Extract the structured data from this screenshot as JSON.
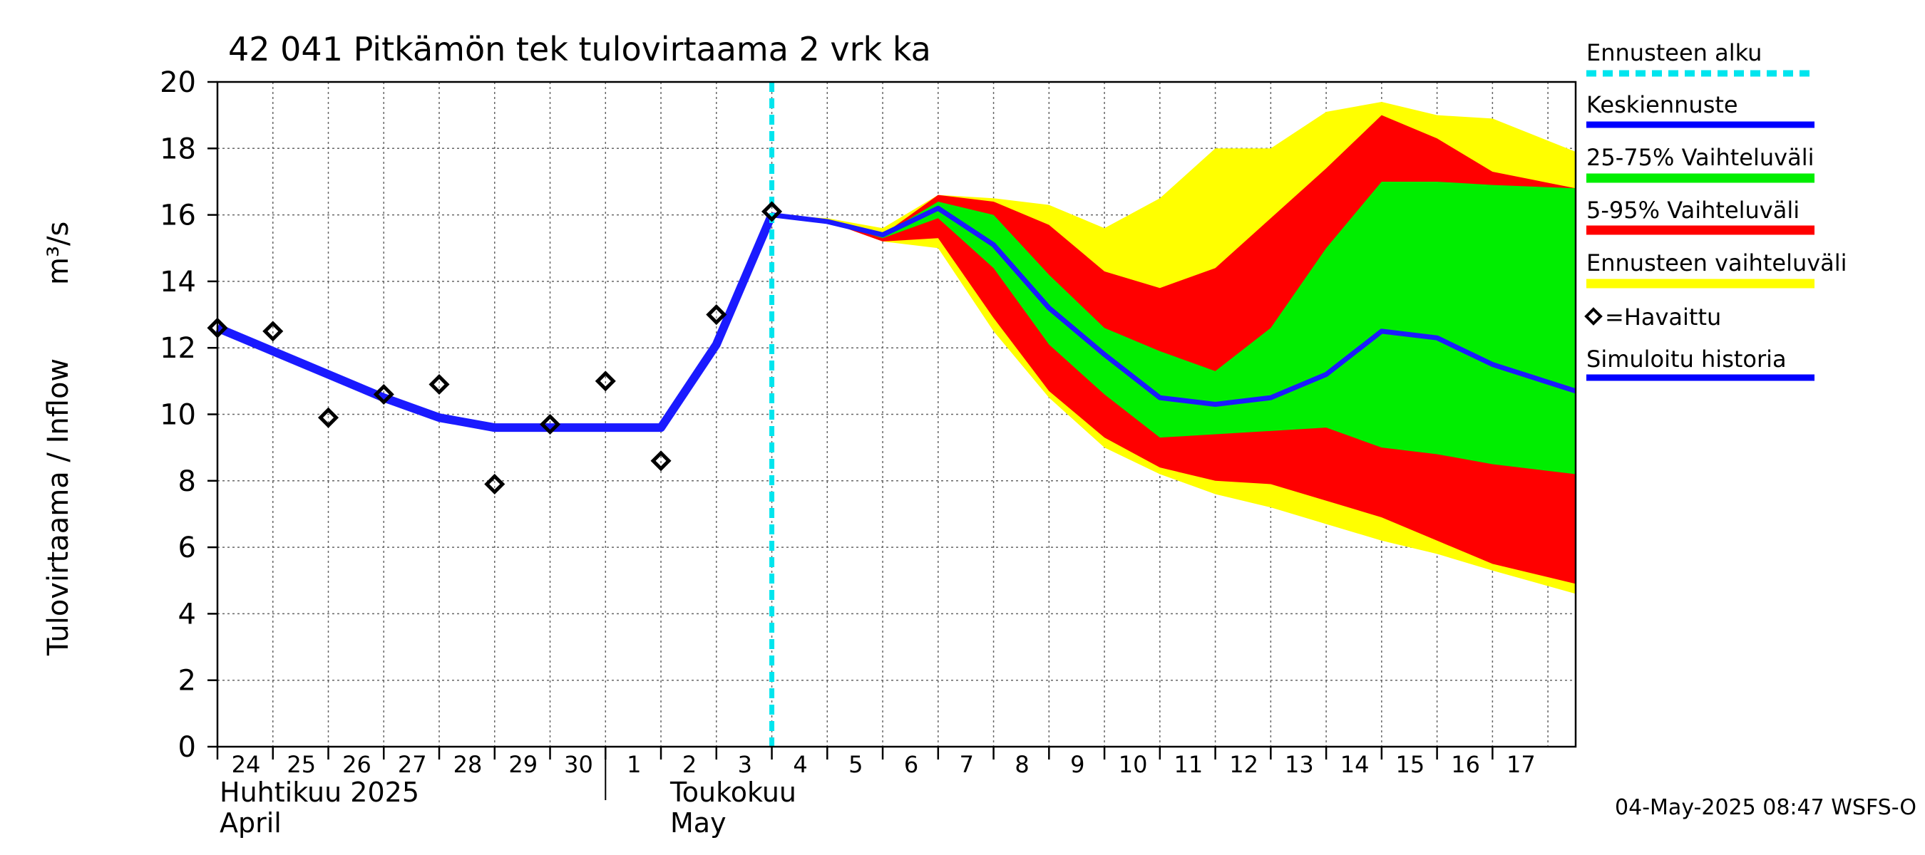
{
  "chart_data": {
    "type": "area",
    "title": "42 041 Pitkämön tek tulovirtaama 2 vrk ka",
    "ylabel": "Tulovirtaama / Inflow",
    "yunit": "m³/s",
    "ylim": [
      0,
      20
    ],
    "yticks": [
      "0",
      "2",
      "4",
      "6",
      "8",
      "10",
      "12",
      "14",
      "16",
      "18",
      "20"
    ],
    "xlim": [
      0,
      24.5
    ],
    "grid": true,
    "day_labels": [
      "24",
      "25",
      "26",
      "27",
      "28",
      "29",
      "30",
      "1",
      "2",
      "3",
      "4",
      "5",
      "6",
      "7",
      "8",
      "9",
      "10",
      "11",
      "12",
      "13",
      "14",
      "15",
      "16",
      "17"
    ],
    "month_labels": {
      "april_fi": "Huhtikuu  2025",
      "april_en": "April",
      "may_fi": "Toukokuu",
      "may_en": "May"
    },
    "forecast_start_x": 10,
    "observed": {
      "x": [
        0,
        1,
        2,
        3,
        4,
        5,
        6,
        7,
        8,
        9,
        10
      ],
      "y": [
        12.6,
        12.5,
        9.9,
        10.6,
        10.9,
        7.9,
        9.7,
        11.0,
        8.6,
        13.0,
        16.1
      ]
    },
    "simulated_history": {
      "x": [
        0,
        1,
        2,
        3,
        4,
        5,
        6,
        7,
        8,
        9,
        10
      ],
      "y": [
        12.6,
        11.9,
        11.2,
        10.5,
        9.9,
        9.6,
        9.6,
        9.6,
        9.6,
        12.1,
        16.0
      ]
    },
    "median_forecast": {
      "x": [
        10,
        11,
        12,
        13,
        14,
        15,
        16,
        17,
        18,
        19,
        20,
        21,
        22,
        23,
        24.5
      ],
      "y": [
        16.0,
        15.8,
        15.4,
        16.2,
        15.1,
        13.2,
        11.8,
        10.5,
        10.3,
        10.5,
        11.2,
        12.5,
        12.3,
        11.5,
        10.7
      ]
    },
    "band_full": {
      "x": [
        10,
        11,
        12,
        13,
        14,
        15,
        16,
        17,
        18,
        19,
        20,
        21,
        22,
        23,
        24.5
      ],
      "low": [
        16.0,
        15.8,
        15.2,
        15.0,
        12.5,
        10.5,
        9.0,
        8.2,
        7.6,
        7.2,
        6.7,
        6.2,
        5.8,
        5.3,
        4.6
      ],
      "high": [
        16.0,
        15.9,
        15.6,
        16.6,
        16.5,
        16.3,
        15.6,
        16.5,
        18.0,
        18.0,
        19.1,
        19.4,
        19.0,
        18.9,
        17.9
      ]
    },
    "band_5_95": {
      "x": [
        10,
        11,
        12,
        13,
        14,
        15,
        16,
        17,
        18,
        19,
        20,
        21,
        22,
        23,
        24.5
      ],
      "low": [
        16.0,
        15.8,
        15.2,
        15.3,
        12.9,
        10.7,
        9.3,
        8.4,
        8.0,
        7.9,
        7.4,
        6.9,
        6.2,
        5.5,
        4.9
      ],
      "high": [
        16.0,
        15.8,
        15.4,
        16.6,
        16.4,
        15.7,
        14.3,
        13.8,
        14.4,
        15.9,
        17.4,
        19.0,
        18.3,
        17.3,
        16.8
      ]
    },
    "band_25_75": {
      "x": [
        10,
        11,
        12,
        13,
        14,
        15,
        16,
        17,
        18,
        19,
        20,
        21,
        22,
        23,
        24.5
      ],
      "low": [
        16.0,
        15.8,
        15.3,
        15.9,
        14.4,
        12.1,
        10.6,
        9.3,
        9.4,
        9.5,
        9.6,
        9.0,
        8.8,
        8.5,
        8.2
      ],
      "high": [
        16.0,
        15.8,
        15.4,
        16.4,
        16.0,
        14.2,
        12.6,
        11.9,
        11.3,
        12.6,
        15.0,
        17.0,
        17.0,
        16.9,
        16.8
      ]
    },
    "legend": [
      {
        "key": "start",
        "label": "Ennusteen alku",
        "color": "#00e5ee",
        "style": "dashed"
      },
      {
        "key": "median",
        "label": "Keskiennuste",
        "color": "#0000ff",
        "style": "line"
      },
      {
        "key": "p25_75",
        "label": "25-75% Vaihteluväli",
        "color": "#00ee00",
        "style": "band"
      },
      {
        "key": "p5_95",
        "label": "5-95% Vaihteluväli",
        "color": "#ff0000",
        "style": "band"
      },
      {
        "key": "full",
        "label": "Ennusteen vaihteluväli",
        "color": "#ffff00",
        "style": "band"
      },
      {
        "key": "observed",
        "label": "=Havaittu",
        "color": "#000000",
        "style": "marker"
      },
      {
        "key": "history",
        "label": "Simuloitu historia",
        "color": "#0000ff",
        "style": "line"
      }
    ],
    "legend_position": "right",
    "colors": {
      "yellow": "#ffff00",
      "red": "#ff0000",
      "green": "#00ee00",
      "blue": "#1a1aff",
      "cyan": "#00e5ee",
      "grid": "#666666"
    }
  },
  "timestamp": "04-May-2025 08:47 WSFS-O"
}
